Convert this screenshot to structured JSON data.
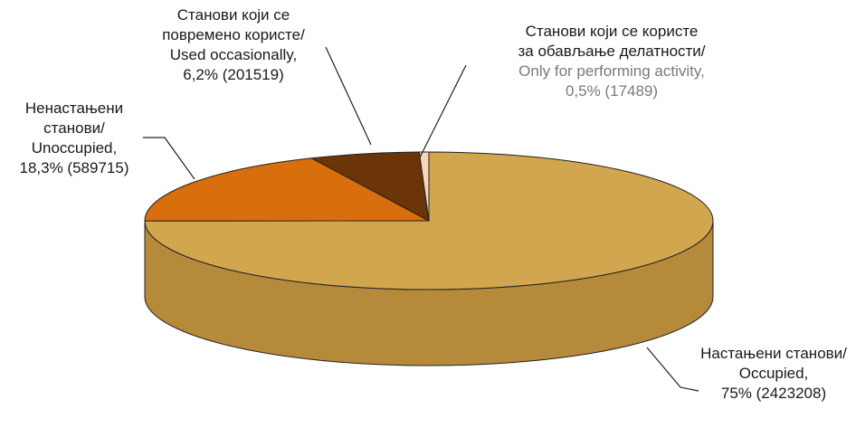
{
  "chart_data": {
    "type": "pie",
    "title": "",
    "three_d": true,
    "slices": [
      {
        "name": "Настањени станови/ Occupied",
        "value": 2423208,
        "percent": 75,
        "color": "#D2A64F",
        "side_color": "#B58A3A",
        "label_lines": [
          "Настањени станови/",
          "Occupied,",
          "75% (2423208)"
        ]
      },
      {
        "name": "Ненастањени станови/ Unoccupied",
        "value": 589715,
        "percent": 18.3,
        "color": "#D96E0C",
        "side_color": "#A8540A",
        "label_lines": [
          "Ненастањени",
          "станови/",
          "Unoccupied,",
          "18,3% (589715)"
        ]
      },
      {
        "name": "Станови који се повремено користе/ Used occasionally",
        "value": 201519,
        "percent": 6.2,
        "color": "#6B3508",
        "side_color": "#4C2606",
        "label_lines": [
          "Станови који се",
          "повремено користе/",
          "Used occasionally,",
          "6,2% (201519)"
        ]
      },
      {
        "name": "Станови који се користе за обављање делатности/ Only for performing activity",
        "value": 17489,
        "percent": 0.5,
        "color": "#F6D6B8",
        "side_color": "#E0B896",
        "label_lines": [
          "Станови који се користе",
          "за обављање делатности/",
          "Only for performing activity,",
          "0,5% (17489)"
        ],
        "gray_line_from": 2
      }
    ]
  }
}
